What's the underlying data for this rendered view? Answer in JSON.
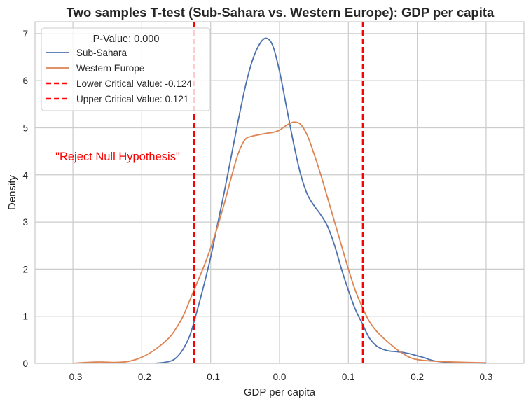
{
  "chart_data": {
    "type": "line",
    "title": "Two samples T-test (Sub-Sahara vs. Western Europe): GDP per capita",
    "xlabel": "GDP per capita",
    "ylabel": "Density",
    "xlim": [
      -0.355,
      0.355
    ],
    "ylim": [
      0,
      7.25
    ],
    "x_ticks": [
      -0.3,
      -0.2,
      -0.1,
      0.0,
      0.1,
      0.2,
      0.3
    ],
    "x_tick_labels": [
      "−0.3",
      "−0.2",
      "−0.1",
      "0.0",
      "0.1",
      "0.2",
      "0.3"
    ],
    "y_ticks": [
      0,
      1,
      2,
      3,
      4,
      5,
      6,
      7
    ],
    "y_tick_labels": [
      "0",
      "1",
      "2",
      "3",
      "4",
      "5",
      "6",
      "7"
    ],
    "grid": true,
    "legend": {
      "title": "P-Value: 0.000",
      "placement": "upper-left"
    },
    "series": [
      {
        "name": "Sub-Sahara",
        "color": "#4c72b0",
        "points": [
          [
            -0.18,
            0.0
          ],
          [
            -0.16,
            0.04
          ],
          [
            -0.15,
            0.12
          ],
          [
            -0.14,
            0.3
          ],
          [
            -0.13,
            0.6
          ],
          [
            -0.12,
            1.1
          ],
          [
            -0.11,
            1.65
          ],
          [
            -0.1,
            2.25
          ],
          [
            -0.09,
            2.95
          ],
          [
            -0.08,
            3.65
          ],
          [
            -0.07,
            4.4
          ],
          [
            -0.06,
            5.15
          ],
          [
            -0.05,
            5.85
          ],
          [
            -0.04,
            6.4
          ],
          [
            -0.03,
            6.75
          ],
          [
            -0.02,
            6.9
          ],
          [
            -0.01,
            6.75
          ],
          [
            0.0,
            6.2
          ],
          [
            0.01,
            5.45
          ],
          [
            0.02,
            4.7
          ],
          [
            0.03,
            4.05
          ],
          [
            0.04,
            3.6
          ],
          [
            0.05,
            3.35
          ],
          [
            0.06,
            3.15
          ],
          [
            0.07,
            2.9
          ],
          [
            0.08,
            2.5
          ],
          [
            0.09,
            2.0
          ],
          [
            0.1,
            1.55
          ],
          [
            0.11,
            1.15
          ],
          [
            0.12,
            0.85
          ],
          [
            0.13,
            0.55
          ],
          [
            0.14,
            0.38
          ],
          [
            0.15,
            0.3
          ],
          [
            0.16,
            0.26
          ],
          [
            0.17,
            0.25
          ],
          [
            0.18,
            0.23
          ],
          [
            0.19,
            0.2
          ],
          [
            0.2,
            0.16
          ],
          [
            0.21,
            0.12
          ],
          [
            0.22,
            0.07
          ],
          [
            0.23,
            0.04
          ],
          [
            0.25,
            0.02
          ],
          [
            0.3,
            0.0
          ]
        ]
      },
      {
        "name": "Western Europe",
        "color": "#dd8452",
        "points": [
          [
            -0.3,
            0.0
          ],
          [
            -0.28,
            0.02
          ],
          [
            -0.26,
            0.03
          ],
          [
            -0.24,
            0.02
          ],
          [
            -0.22,
            0.04
          ],
          [
            -0.2,
            0.13
          ],
          [
            -0.18,
            0.3
          ],
          [
            -0.16,
            0.55
          ],
          [
            -0.15,
            0.75
          ],
          [
            -0.14,
            1.0
          ],
          [
            -0.13,
            1.35
          ],
          [
            -0.12,
            1.7
          ],
          [
            -0.11,
            2.05
          ],
          [
            -0.1,
            2.45
          ],
          [
            -0.09,
            2.9
          ],
          [
            -0.08,
            3.4
          ],
          [
            -0.07,
            3.95
          ],
          [
            -0.06,
            4.45
          ],
          [
            -0.05,
            4.75
          ],
          [
            -0.04,
            4.82
          ],
          [
            -0.03,
            4.85
          ],
          [
            -0.02,
            4.88
          ],
          [
            -0.01,
            4.9
          ],
          [
            0.0,
            4.95
          ],
          [
            0.01,
            5.05
          ],
          [
            0.02,
            5.12
          ],
          [
            0.03,
            5.08
          ],
          [
            0.04,
            4.85
          ],
          [
            0.05,
            4.45
          ],
          [
            0.06,
            4.0
          ],
          [
            0.07,
            3.5
          ],
          [
            0.08,
            3.0
          ],
          [
            0.09,
            2.5
          ],
          [
            0.1,
            2.0
          ],
          [
            0.11,
            1.55
          ],
          [
            0.12,
            1.2
          ],
          [
            0.13,
            0.9
          ],
          [
            0.14,
            0.7
          ],
          [
            0.15,
            0.55
          ],
          [
            0.16,
            0.42
          ],
          [
            0.17,
            0.3
          ],
          [
            0.18,
            0.2
          ],
          [
            0.19,
            0.12
          ],
          [
            0.2,
            0.08
          ],
          [
            0.22,
            0.05
          ],
          [
            0.25,
            0.03
          ],
          [
            0.3,
            0.01
          ]
        ]
      }
    ],
    "critical_lines": [
      {
        "name": "Lower Critical Value: -0.124",
        "x": -0.124,
        "color": "#ff0000",
        "style": "dashed"
      },
      {
        "name": "Upper Critical Value: 0.121",
        "x": 0.121,
        "color": "#ff0000",
        "style": "dashed"
      }
    ],
    "annotation": {
      "text": "\"Reject Null Hypothesis\"",
      "x": -0.235,
      "y": 4.4,
      "color": "#ff0000"
    }
  }
}
